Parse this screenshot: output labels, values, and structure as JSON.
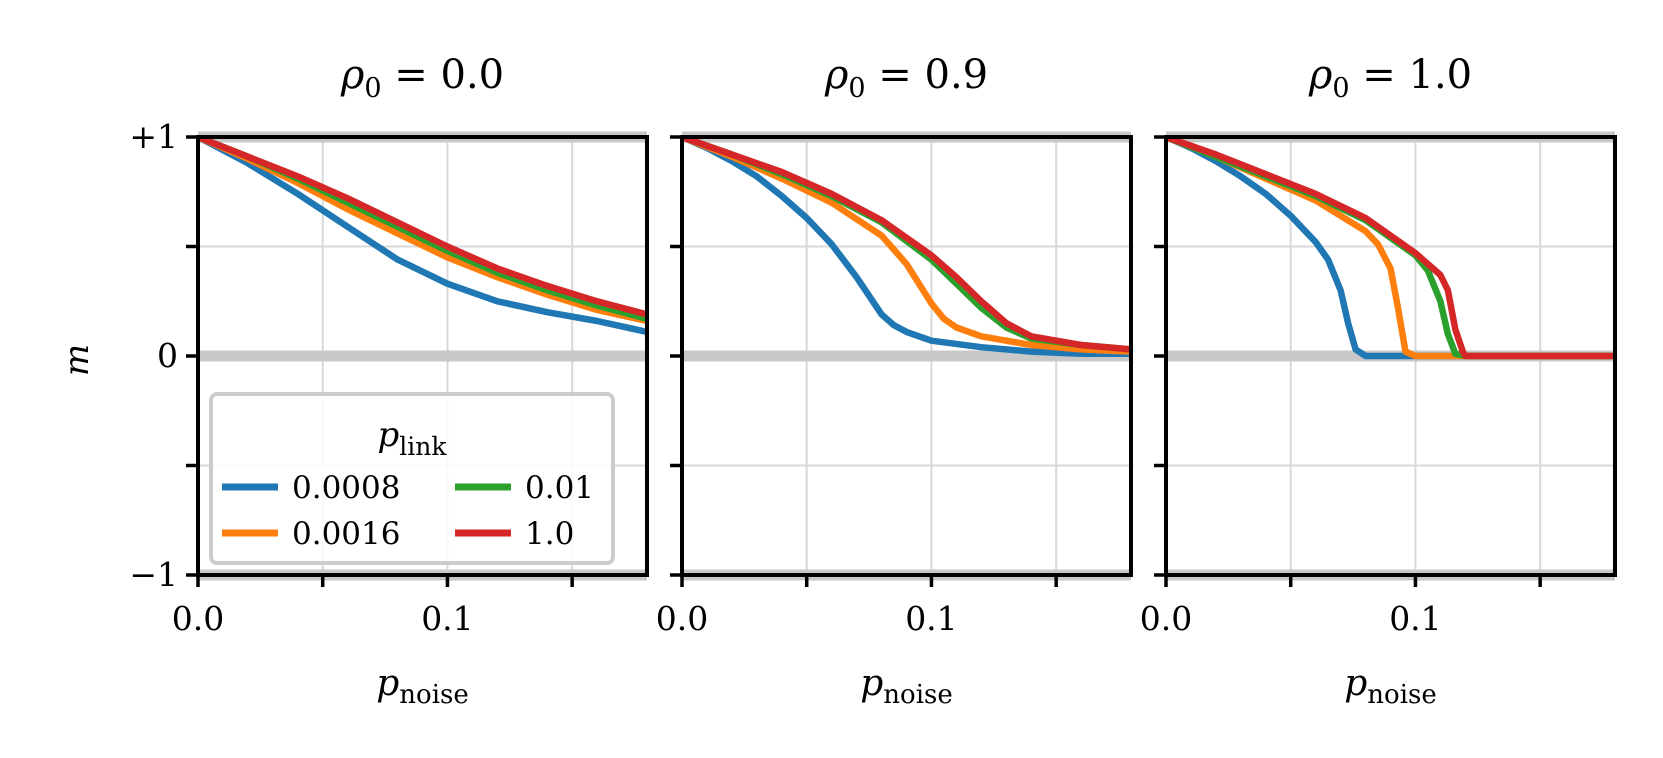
{
  "chart_data": {
    "type": "line",
    "x_label_main": "p",
    "x_label_sub": "noise",
    "y_label": "m",
    "xlim": [
      0.0,
      0.18
    ],
    "ylim": [
      -1,
      1
    ],
    "x_ticks": [
      0.0,
      0.05,
      0.1,
      0.15
    ],
    "x_tick_labels": [
      "0.0",
      "",
      "0.1",
      ""
    ],
    "y_ticks": [
      1,
      0.5,
      0,
      -0.5,
      -1
    ],
    "y_tick_labels": [
      "+1",
      "",
      "0",
      "",
      "−1"
    ],
    "reference_lines": [
      1,
      0,
      -1
    ],
    "legend": {
      "title_main": "p",
      "title_sub": "link",
      "position": "lower-left of first panel",
      "entries": [
        "0.0008",
        "0.0016",
        "0.01",
        "1.0"
      ]
    },
    "colors": {
      "0.0008": "#1f77b4",
      "0.0016": "#ff7f0e",
      "0.01": "#2ca02c",
      "1.0": "#d62728"
    },
    "panels": [
      {
        "title_prefix": "ρ",
        "title_sub": "0",
        "title_suffix": " = 0.0",
        "series": [
          {
            "name": "0.0008",
            "x": [
              0,
              0.02,
              0.04,
              0.06,
              0.08,
              0.1,
              0.12,
              0.14,
              0.16,
              0.18
            ],
            "y": [
              1.0,
              0.88,
              0.74,
              0.59,
              0.44,
              0.33,
              0.25,
              0.2,
              0.16,
              0.11
            ]
          },
          {
            "name": "0.0016",
            "x": [
              0,
              0.02,
              0.04,
              0.06,
              0.08,
              0.1,
              0.12,
              0.14,
              0.16,
              0.18
            ],
            "y": [
              1.0,
              0.9,
              0.79,
              0.67,
              0.56,
              0.45,
              0.36,
              0.28,
              0.21,
              0.16
            ]
          },
          {
            "name": "0.01",
            "x": [
              0,
              0.02,
              0.04,
              0.06,
              0.08,
              0.1,
              0.12,
              0.14,
              0.16,
              0.18
            ],
            "y": [
              1.0,
              0.91,
              0.81,
              0.7,
              0.59,
              0.48,
              0.38,
              0.3,
              0.23,
              0.17
            ]
          },
          {
            "name": "1.0",
            "x": [
              0,
              0.02,
              0.04,
              0.06,
              0.08,
              0.1,
              0.12,
              0.14,
              0.16,
              0.18
            ],
            "y": [
              1.0,
              0.91,
              0.82,
              0.72,
              0.61,
              0.5,
              0.4,
              0.32,
              0.25,
              0.19
            ]
          }
        ]
      },
      {
        "title_prefix": "ρ",
        "title_sub": "0",
        "title_suffix": " = 0.9",
        "series": [
          {
            "name": "0.0008",
            "x": [
              0,
              0.01,
              0.02,
              0.03,
              0.04,
              0.05,
              0.06,
              0.07,
              0.08,
              0.085,
              0.09,
              0.1,
              0.12,
              0.14,
              0.16,
              0.18
            ],
            "y": [
              1.0,
              0.95,
              0.89,
              0.82,
              0.73,
              0.63,
              0.51,
              0.36,
              0.19,
              0.14,
              0.11,
              0.07,
              0.04,
              0.02,
              0.01,
              0.01
            ]
          },
          {
            "name": "0.0016",
            "x": [
              0,
              0.02,
              0.04,
              0.06,
              0.08,
              0.09,
              0.1,
              0.105,
              0.11,
              0.12,
              0.14,
              0.16,
              0.18
            ],
            "y": [
              1.0,
              0.91,
              0.81,
              0.7,
              0.55,
              0.42,
              0.24,
              0.17,
              0.13,
              0.09,
              0.05,
              0.03,
              0.02
            ]
          },
          {
            "name": "0.01",
            "x": [
              0,
              0.02,
              0.04,
              0.06,
              0.08,
              0.1,
              0.11,
              0.12,
              0.13,
              0.14,
              0.16,
              0.18
            ],
            "y": [
              1.0,
              0.92,
              0.83,
              0.73,
              0.61,
              0.44,
              0.33,
              0.22,
              0.13,
              0.08,
              0.05,
              0.03
            ]
          },
          {
            "name": "1.0",
            "x": [
              0,
              0.02,
              0.04,
              0.06,
              0.08,
              0.1,
              0.11,
              0.12,
              0.13,
              0.14,
              0.16,
              0.18
            ],
            "y": [
              1.0,
              0.92,
              0.84,
              0.74,
              0.62,
              0.46,
              0.36,
              0.25,
              0.15,
              0.09,
              0.05,
              0.03
            ]
          }
        ]
      },
      {
        "title_prefix": "ρ",
        "title_sub": "0",
        "title_suffix": " = 1.0",
        "series": [
          {
            "name": "0.0008",
            "x": [
              0,
              0.01,
              0.02,
              0.03,
              0.04,
              0.05,
              0.06,
              0.065,
              0.07,
              0.073,
              0.076,
              0.08,
              0.1,
              0.12,
              0.14,
              0.16,
              0.18
            ],
            "y": [
              1.0,
              0.95,
              0.89,
              0.82,
              0.74,
              0.64,
              0.52,
              0.44,
              0.3,
              0.15,
              0.03,
              0.0,
              0.0,
              0.0,
              0.0,
              0.0,
              0.0
            ]
          },
          {
            "name": "0.0016",
            "x": [
              0,
              0.02,
              0.04,
              0.06,
              0.08,
              0.085,
              0.09,
              0.093,
              0.096,
              0.1,
              0.12,
              0.14,
              0.16,
              0.18
            ],
            "y": [
              1.0,
              0.91,
              0.81,
              0.71,
              0.57,
              0.51,
              0.4,
              0.22,
              0.02,
              0.0,
              0.0,
              0.0,
              0.0,
              0.0
            ]
          },
          {
            "name": "0.01",
            "x": [
              0,
              0.02,
              0.04,
              0.06,
              0.08,
              0.1,
              0.105,
              0.11,
              0.113,
              0.116,
              0.12,
              0.14,
              0.16,
              0.18
            ],
            "y": [
              1.0,
              0.91,
              0.82,
              0.73,
              0.62,
              0.46,
              0.39,
              0.25,
              0.1,
              0.01,
              0.0,
              0.0,
              0.0,
              0.0
            ]
          },
          {
            "name": "1.0",
            "x": [
              0,
              0.02,
              0.04,
              0.06,
              0.08,
              0.1,
              0.11,
              0.113,
              0.116,
              0.119,
              0.12,
              0.14,
              0.16,
              0.18
            ],
            "y": [
              1.0,
              0.92,
              0.83,
              0.74,
              0.63,
              0.47,
              0.37,
              0.3,
              0.12,
              0.02,
              0.0,
              0.0,
              0.0,
              0.0
            ]
          }
        ]
      }
    ]
  }
}
